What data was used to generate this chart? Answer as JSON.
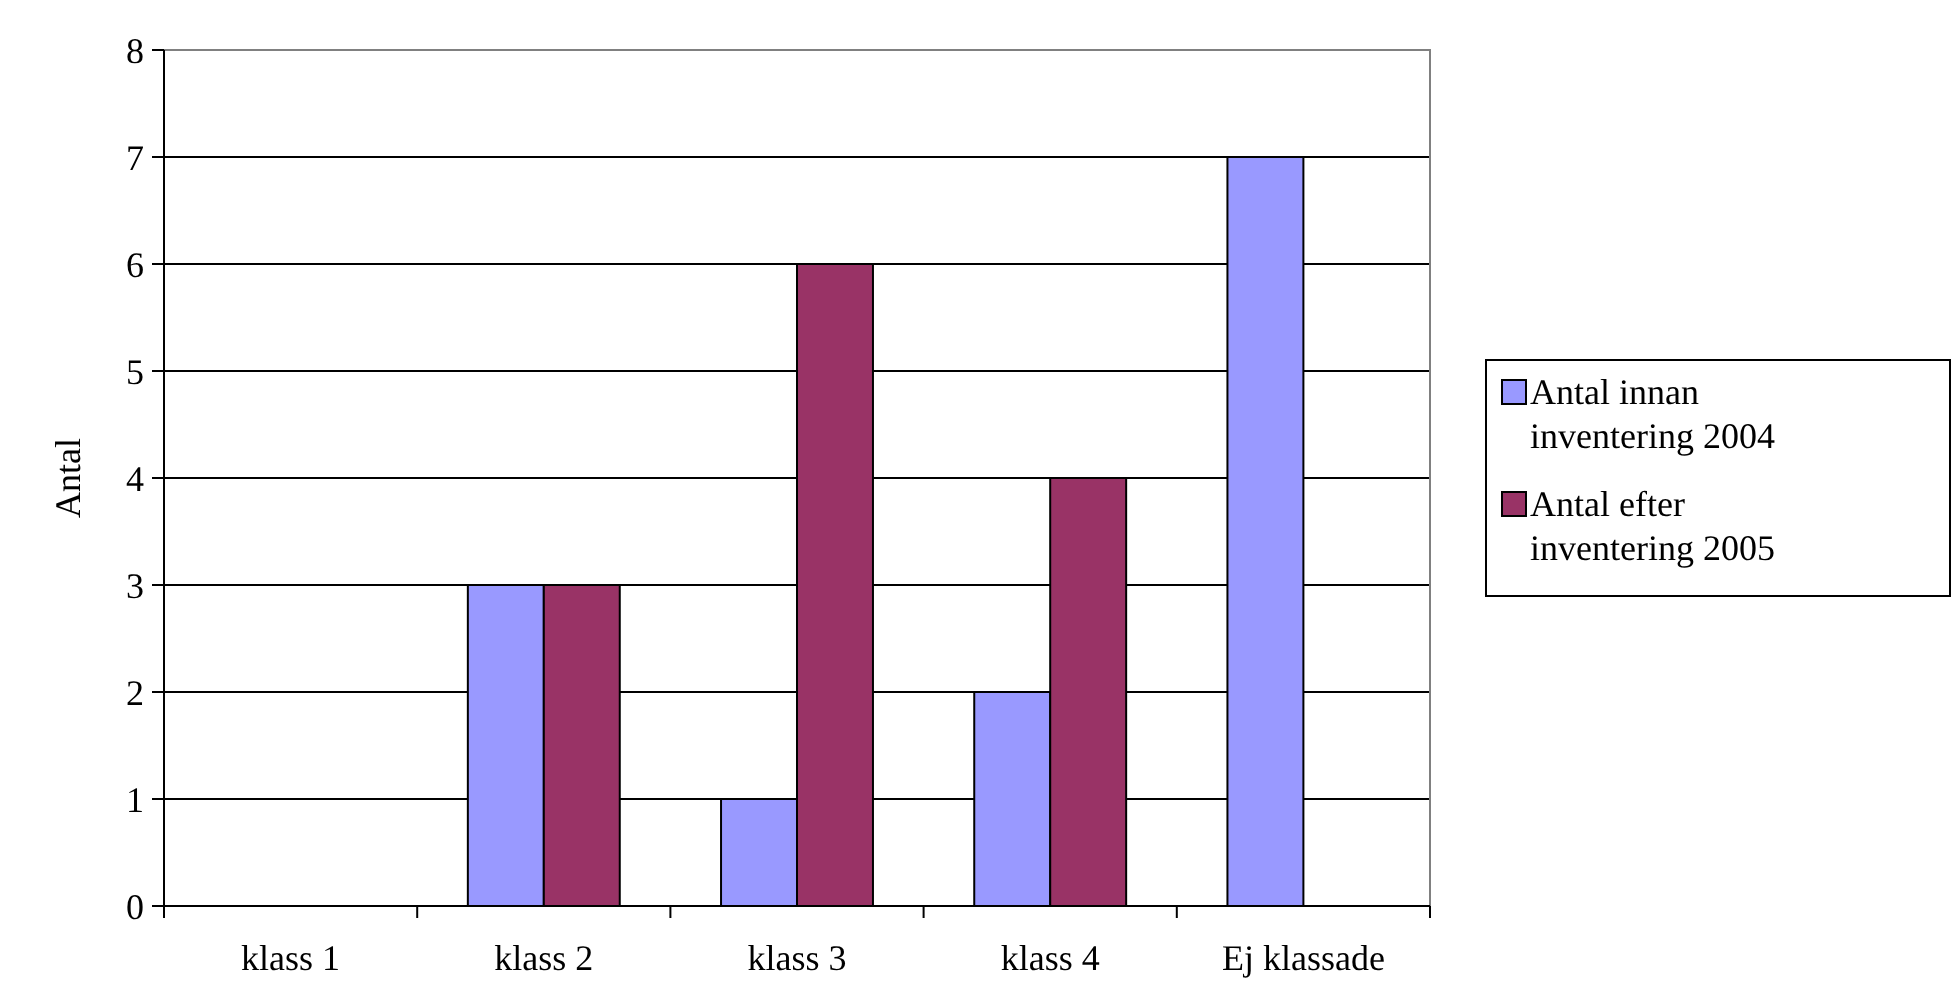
{
  "chart_data": {
    "type": "bar",
    "ylabel": "Antal",
    "categories": [
      "klass 1",
      "klass 2",
      "klass 3",
      "klass 4",
      "Ej klassade"
    ],
    "series": [
      {
        "name": "Antal innan inventering 2004",
        "color": "#9999ff",
        "values": [
          0,
          3,
          1,
          2,
          7
        ]
      },
      {
        "name": "Antal efter inventering 2005",
        "color": "#993366",
        "values": [
          0,
          3,
          6,
          4,
          0
        ]
      }
    ],
    "ylim": [
      0,
      8
    ],
    "yticks": [
      0,
      1,
      2,
      3,
      4,
      5,
      6,
      7,
      8
    ],
    "grid": "y",
    "legend": "right"
  }
}
